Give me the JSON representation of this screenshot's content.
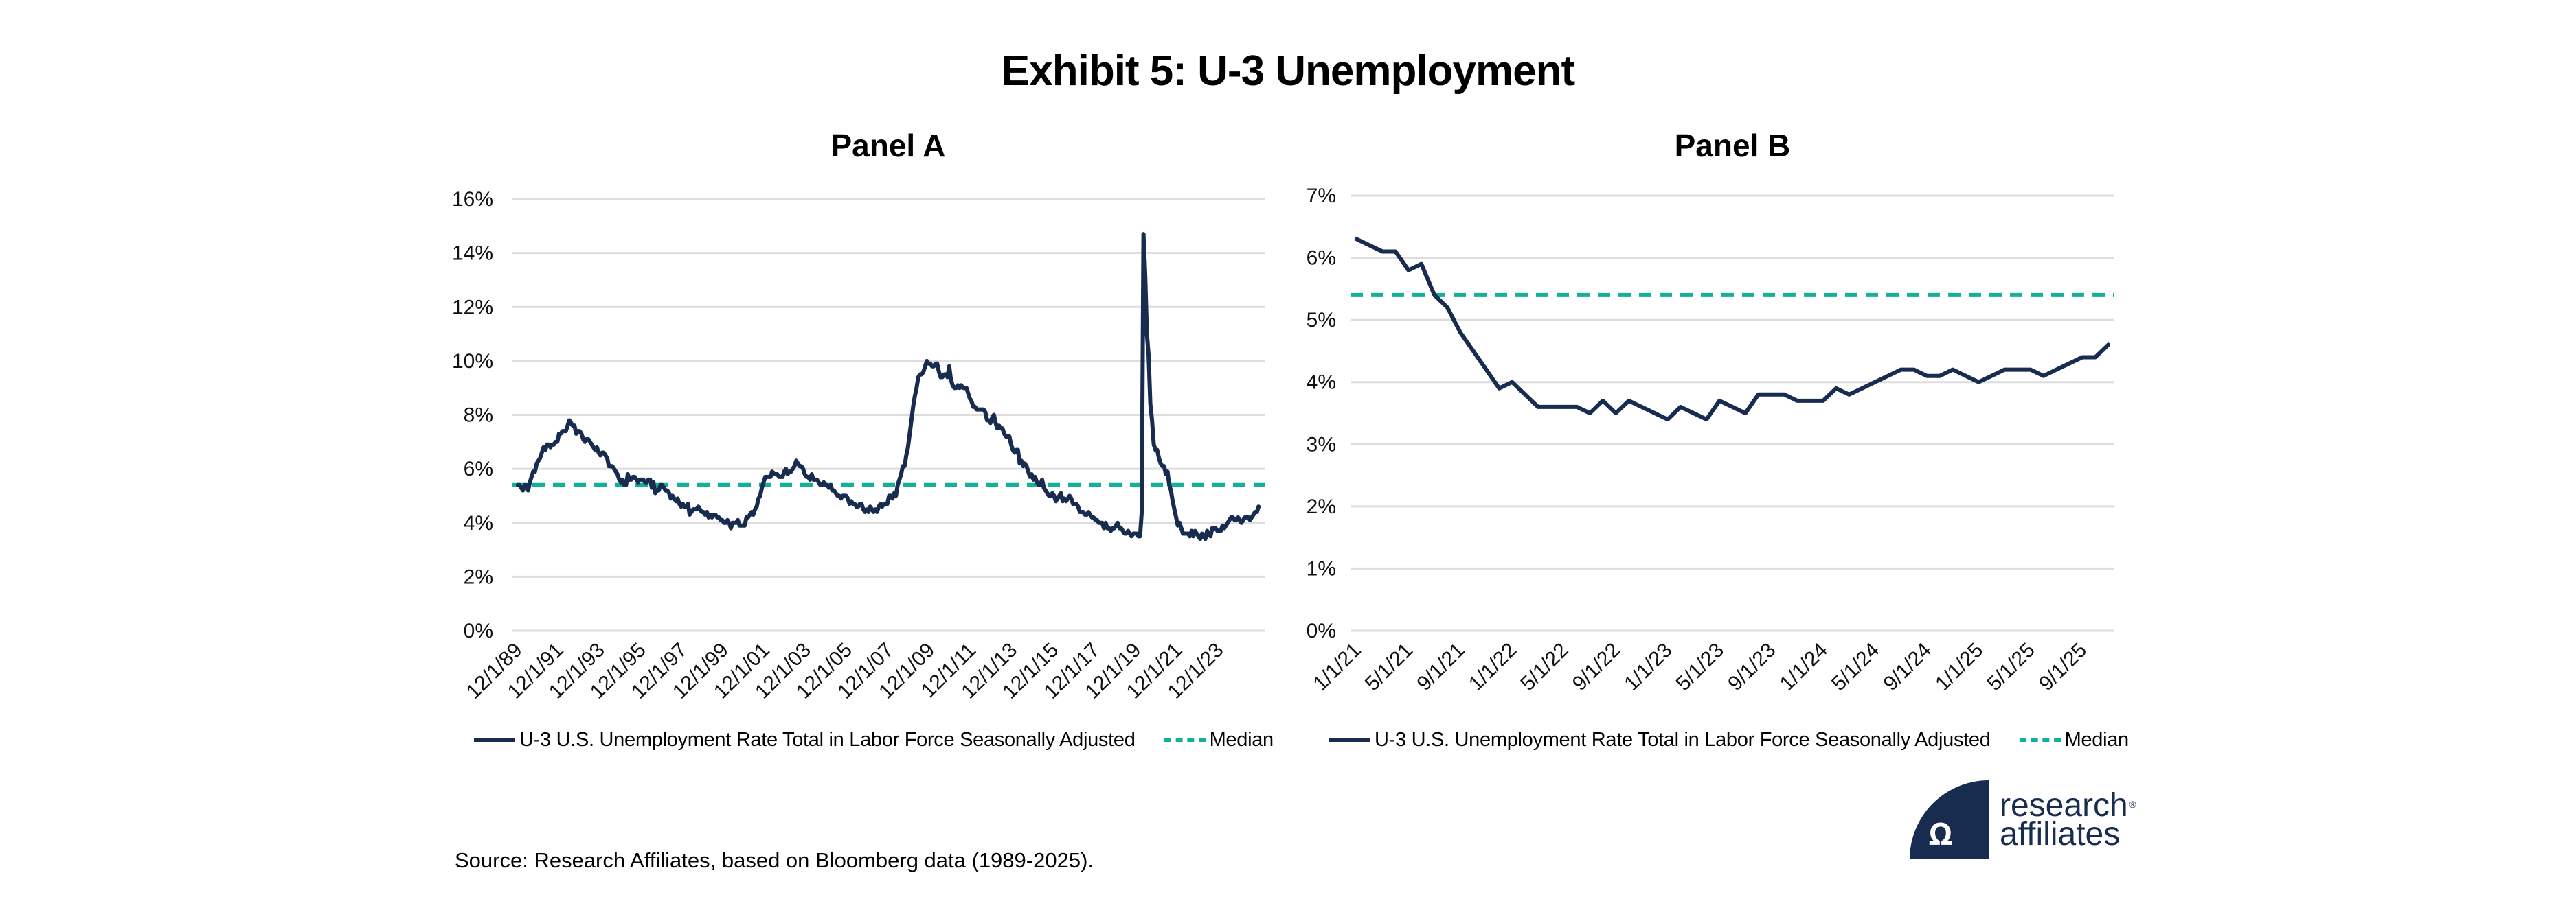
{
  "title": "Exhibit 5: U-3 Unemployment",
  "source": "Source: Research Affiliates, based on Bloomberg data (1989-2025).",
  "logo": {
    "line1": "research",
    "line2": "affiliates",
    "registered": "®",
    "mark": "ꭥ"
  },
  "colors": {
    "series": "#172c4e",
    "median": "#13b09a",
    "grid": "#dddddd"
  },
  "chart_data": [
    {
      "type": "line",
      "title": "Panel A",
      "xlabel": "",
      "ylabel": "",
      "ylim": [
        0,
        16
      ],
      "yticks": [
        "0%",
        "2%",
        "4%",
        "6%",
        "8%",
        "10%",
        "12%",
        "14%",
        "16%"
      ],
      "ytick_values": [
        0,
        2,
        4,
        6,
        8,
        10,
        12,
        14,
        16
      ],
      "xticks": [
        "12/1/89",
        "12/1/91",
        "12/1/93",
        "12/1/95",
        "12/1/97",
        "12/1/99",
        "12/1/01",
        "12/1/03",
        "12/1/05",
        "12/1/07",
        "12/1/09",
        "12/1/11",
        "12/1/13",
        "12/1/15",
        "12/1/17",
        "12/1/19",
        "12/1/21",
        "12/1/23"
      ],
      "x_start": "1989-12",
      "x_frequency": "monthly",
      "grid": true,
      "legend_position": "bottom",
      "series": [
        {
          "name": "U-3 U.S. Unemployment Rate Total in Labor Force Seasonally Adjusted",
          "style": "solid",
          "values": [
            5.4,
            5.4,
            5.3,
            5.2,
            5.4,
            5.4,
            5.2,
            5.5,
            5.7,
            5.9,
            5.9,
            6.2,
            6.3,
            6.4,
            6.6,
            6.8,
            6.7,
            6.9,
            6.9,
            6.8,
            6.9,
            6.9,
            7.0,
            7.0,
            7.3,
            7.3,
            7.4,
            7.4,
            7.4,
            7.6,
            7.8,
            7.7,
            7.6,
            7.6,
            7.3,
            7.4,
            7.4,
            7.3,
            7.1,
            7.0,
            7.1,
            7.1,
            7.0,
            6.9,
            6.8,
            6.7,
            6.8,
            6.6,
            6.5,
            6.6,
            6.6,
            6.5,
            6.4,
            6.1,
            6.1,
            6.1,
            6.0,
            5.9,
            5.8,
            5.6,
            5.5,
            5.6,
            5.4,
            5.4,
            5.8,
            5.6,
            5.6,
            5.7,
            5.7,
            5.6,
            5.5,
            5.6,
            5.6,
            5.6,
            5.5,
            5.5,
            5.6,
            5.6,
            5.3,
            5.5,
            5.1,
            5.2,
            5.2,
            5.4,
            5.4,
            5.3,
            5.2,
            5.2,
            5.1,
            4.9,
            5.0,
            4.9,
            4.8,
            4.9,
            4.7,
            4.6,
            4.7,
            4.6,
            4.6,
            4.7,
            4.3,
            4.4,
            4.5,
            4.5,
            4.5,
            4.6,
            4.5,
            4.4,
            4.4,
            4.3,
            4.4,
            4.2,
            4.3,
            4.2,
            4.3,
            4.3,
            4.2,
            4.2,
            4.1,
            4.1,
            4.0,
            4.0,
            4.1,
            4.0,
            3.8,
            4.0,
            4.0,
            4.0,
            4.1,
            3.9,
            3.9,
            3.9,
            3.9,
            4.2,
            4.2,
            4.3,
            4.4,
            4.3,
            4.5,
            4.6,
            4.9,
            5.0,
            5.3,
            5.5,
            5.7,
            5.7,
            5.7,
            5.7,
            5.9,
            5.8,
            5.8,
            5.8,
            5.7,
            5.7,
            5.7,
            5.9,
            6.0,
            5.8,
            5.9,
            5.9,
            6.0,
            6.1,
            6.3,
            6.2,
            6.1,
            6.1,
            6.0,
            5.8,
            5.7,
            5.7,
            5.6,
            5.8,
            5.6,
            5.6,
            5.6,
            5.5,
            5.4,
            5.4,
            5.5,
            5.4,
            5.4,
            5.3,
            5.4,
            5.2,
            5.2,
            5.1,
            5.0,
            5.0,
            4.9,
            5.0,
            5.0,
            5.0,
            4.9,
            4.7,
            4.8,
            4.7,
            4.7,
            4.6,
            4.6,
            4.7,
            4.7,
            4.5,
            4.4,
            4.5,
            4.4,
            4.6,
            4.5,
            4.4,
            4.5,
            4.4,
            4.6,
            4.7,
            4.6,
            4.7,
            4.7,
            4.7,
            5.0,
            5.0,
            4.9,
            5.1,
            5.0,
            5.4,
            5.6,
            5.8,
            6.1,
            6.1,
            6.5,
            6.8,
            7.3,
            7.8,
            8.3,
            8.7,
            9.0,
            9.4,
            9.5,
            9.5,
            9.6,
            9.8,
            10.0,
            9.9,
            9.9,
            9.8,
            9.8,
            9.9,
            9.9,
            9.6,
            9.4,
            9.4,
            9.5,
            9.5,
            9.4,
            9.8,
            9.3,
            9.1,
            9.0,
            9.0,
            9.1,
            9.0,
            9.1,
            9.0,
            9.0,
            9.0,
            8.8,
            8.6,
            8.5,
            8.3,
            8.3,
            8.2,
            8.2,
            8.2,
            8.2,
            8.2,
            8.1,
            7.8,
            7.8,
            7.7,
            7.9,
            8.0,
            7.7,
            7.5,
            7.6,
            7.5,
            7.5,
            7.3,
            7.2,
            7.2,
            7.2,
            6.9,
            6.7,
            6.6,
            6.7,
            6.7,
            6.2,
            6.3,
            6.1,
            6.2,
            6.1,
            5.9,
            5.7,
            5.8,
            5.6,
            5.7,
            5.5,
            5.4,
            5.4,
            5.6,
            5.3,
            5.2,
            5.1,
            5.0,
            5.0,
            5.1,
            5.0,
            4.8,
            4.9,
            5.0,
            5.1,
            4.8,
            4.9,
            4.8,
            4.9,
            5.0,
            4.9,
            4.7,
            4.7,
            4.7,
            4.6,
            4.4,
            4.4,
            4.4,
            4.3,
            4.3,
            4.4,
            4.3,
            4.2,
            4.2,
            4.1,
            4.1,
            4.0,
            4.0,
            4.0,
            3.8,
            4.0,
            3.8,
            3.8,
            3.7,
            3.8,
            3.8,
            3.9,
            4.0,
            3.8,
            3.8,
            3.7,
            3.6,
            3.6,
            3.7,
            3.6,
            3.5,
            3.6,
            3.6,
            3.6,
            3.5,
            3.5,
            4.4,
            14.7,
            13.2,
            11.0,
            10.2,
            8.4,
            7.8,
            6.9,
            6.7,
            6.7,
            6.4,
            6.2,
            6.1,
            6.1,
            5.8,
            5.9,
            5.4,
            5.2,
            4.8,
            4.5,
            4.2,
            3.9,
            4.0,
            3.8,
            3.6,
            3.6,
            3.6,
            3.6,
            3.5,
            3.7,
            3.5,
            3.7,
            3.6,
            3.5,
            3.4,
            3.6,
            3.5,
            3.4,
            3.7,
            3.6,
            3.5,
            3.8,
            3.8,
            3.8,
            3.7,
            3.7,
            3.7,
            3.9,
            3.8,
            3.9,
            4.0,
            4.1,
            4.2,
            4.2,
            4.1,
            4.1,
            4.2,
            4.1,
            4.0,
            4.1,
            4.2,
            4.2,
            4.2,
            4.1,
            4.2,
            4.3,
            4.4,
            4.4,
            4.6
          ]
        },
        {
          "name": "Median",
          "style": "dashed",
          "value": 5.4
        }
      ]
    },
    {
      "type": "line",
      "title": "Panel B",
      "xlabel": "",
      "ylabel": "",
      "ylim": [
        0,
        7
      ],
      "yticks": [
        "0%",
        "1%",
        "2%",
        "3%",
        "4%",
        "5%",
        "6%",
        "7%"
      ],
      "ytick_values": [
        0,
        1,
        2,
        3,
        4,
        5,
        6,
        7
      ],
      "xticks": [
        "1/1/21",
        "5/1/21",
        "9/1/21",
        "1/1/22",
        "5/1/22",
        "9/1/22",
        "1/1/23",
        "5/1/23",
        "9/1/23",
        "1/1/24",
        "5/1/24",
        "9/1/24",
        "1/1/25",
        "5/1/25",
        "9/1/25"
      ],
      "x_start": "2021-01",
      "x_frequency": "monthly",
      "grid": true,
      "legend_position": "bottom",
      "series": [
        {
          "name": "U-3 U.S. Unemployment Rate Total in Labor Force Seasonally Adjusted",
          "style": "solid",
          "values": [
            6.3,
            6.2,
            6.1,
            6.1,
            5.8,
            5.9,
            5.4,
            5.2,
            4.8,
            4.5,
            4.2,
            3.9,
            4.0,
            3.8,
            3.6,
            3.6,
            3.6,
            3.6,
            3.5,
            3.7,
            3.5,
            3.7,
            3.6,
            3.5,
            3.4,
            3.6,
            3.5,
            3.4,
            3.7,
            3.6,
            3.5,
            3.8,
            3.8,
            3.8,
            3.7,
            3.7,
            3.7,
            3.9,
            3.8,
            3.9,
            4.0,
            4.1,
            4.2,
            4.2,
            4.1,
            4.1,
            4.2,
            4.1,
            4.0,
            4.1,
            4.2,
            4.2,
            4.2,
            4.1,
            4.2,
            4.3,
            4.4,
            4.4,
            4.6
          ]
        },
        {
          "name": "Median",
          "style": "dashed",
          "value": 5.4
        }
      ]
    }
  ],
  "legend": {
    "series_label": "U-3 U.S. Unemployment Rate Total in Labor Force Seasonally Adjusted",
    "median_label": "Median"
  }
}
